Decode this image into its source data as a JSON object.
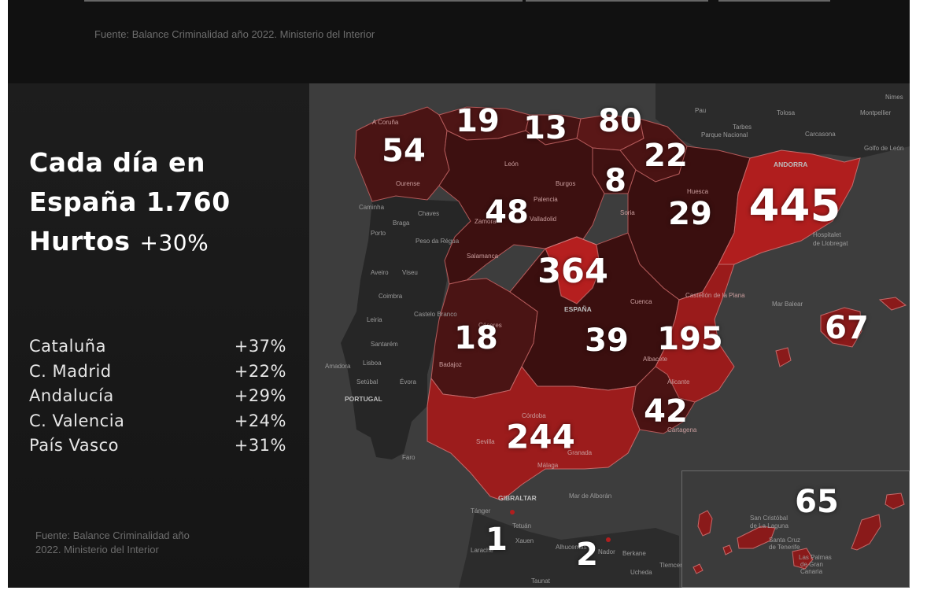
{
  "header": {
    "source": "Fuente: Balance Criminalidad año 2022. Ministerio del Interior"
  },
  "sidebar": {
    "headline_line1": "Cada día en",
    "headline_line2": "España 1.760",
    "headline_line3_word": "Hurtos",
    "headline_line3_pct": "+30%",
    "stats": [
      {
        "name": "Cataluña",
        "value": "+37%"
      },
      {
        "name": "C. Madrid",
        "value": "+22%"
      },
      {
        "name": "Andalucía",
        "value": "+29%"
      },
      {
        "name": "C. Valencia",
        "value": "+24%"
      },
      {
        "name": "País Vasco",
        "value": "+31%"
      }
    ],
    "source_line1": "Fuente: Balance Criminalidad año",
    "source_line2": "2022. Ministerio del Interior"
  },
  "map": {
    "colors": {
      "background": "#3d3d3d",
      "land": "#2a2a2a",
      "region_dark": "#3a1010",
      "region_mid": "#5a1818",
      "region_bright": "#b01e1e",
      "border": "#b35a5a"
    },
    "regions": [
      {
        "name": "Galicia",
        "value": "54"
      },
      {
        "name": "Asturias",
        "value": "19"
      },
      {
        "name": "Cantabria",
        "value": "13"
      },
      {
        "name": "País Vasco",
        "value": "80"
      },
      {
        "name": "Navarra",
        "value": "22"
      },
      {
        "name": "La Rioja",
        "value": "8"
      },
      {
        "name": "Castilla y León",
        "value": "48"
      },
      {
        "name": "Aragón",
        "value": "29"
      },
      {
        "name": "Cataluña",
        "value": "445"
      },
      {
        "name": "C. Madrid",
        "value": "364"
      },
      {
        "name": "Extremadura",
        "value": "18"
      },
      {
        "name": "Castilla-La Mancha",
        "value": "39"
      },
      {
        "name": "C. Valencia",
        "value": "195"
      },
      {
        "name": "Baleares",
        "value": "67"
      },
      {
        "name": "Murcia",
        "value": "42"
      },
      {
        "name": "Andalucía",
        "value": "244"
      },
      {
        "name": "Ceuta",
        "value": "1"
      },
      {
        "name": "Melilla",
        "value": "2"
      },
      {
        "name": "Canarias",
        "value": "65"
      }
    ],
    "place_labels": {
      "a_coruna": "A Coruña",
      "ourense": "Ourense",
      "leon": "León",
      "palencia": "Palencia",
      "burgos": "Burgos",
      "valladolid": "Valladolid",
      "zamora": "Zamora",
      "salamanca": "Salamanca",
      "soria": "Soria",
      "huesca": "Huesca",
      "andorra": "ANDORRA",
      "hospitalet": "Hospitalet",
      "llobregat": "de Llobregat",
      "castellon": "Castellón de la Plana",
      "cuenca": "Cuenca",
      "espana": "ESPAÑA",
      "albacete": "Albacete",
      "alicante": "Alicante",
      "cartagena": "Cartagena",
      "cordoba": "Córdoba",
      "sevilla": "Sevilla",
      "granada": "Granada",
      "malaga": "Málaga",
      "gibraltar": "GIBRALTAR",
      "badajoz": "Badajoz",
      "caceres": "Cáceres",
      "portugal": "PORTUGAL",
      "lisboa": "Lisboa",
      "amadora": "Amadora",
      "setubal": "Setúbal",
      "evora": "Évora",
      "faro": "Faro",
      "coimbra": "Coimbra",
      "aveiro": "Aveiro",
      "viseu": "Viseu",
      "porto": "Porto",
      "braga": "Braga",
      "chaves": "Chaves",
      "caminha": "Caminha",
      "leiria": "Leiria",
      "santarem": "Santarém",
      "castelo_branco": "Castelo Branco",
      "peso_regua": "Peso da Régua",
      "tanger": "Tánger",
      "tetuan": "Tetuán",
      "larache": "Larache",
      "xauen": "Xauen",
      "alhucemas": "Alhucemas",
      "nador": "Nador",
      "berkane": "Berkane",
      "taunat": "Taunat",
      "ucheda": "Ucheda",
      "tlemcen": "Tlemcen",
      "mar_alboran": "Mar de Alborán",
      "mar_balear": "Mar Balear",
      "tarbes": "Tarbes",
      "pau": "Pau",
      "toulouse": "Tolosa",
      "carcasona": "Carcasona",
      "montpellier": "Montpellier",
      "nimes": "Nimes",
      "golfo_leon": "Golfo de León",
      "pirineo": "Parque Nacional",
      "san_cristobal": "San Cristóbal",
      "la_laguna": "de La Laguna",
      "santa_cruz": "Santa Cruz",
      "de_tenerife": "de Tenerife",
      "las_palmas": "Las Palmas",
      "de_gran": "de Gran",
      "canaria": "Canaria"
    }
  }
}
